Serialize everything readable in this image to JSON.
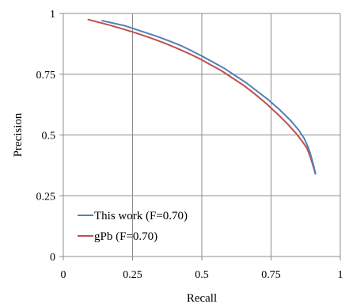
{
  "chart_data": {
    "type": "line",
    "title": "",
    "xlabel": "Recall",
    "ylabel": "Precision",
    "xlim": [
      0,
      1
    ],
    "ylim": [
      0,
      1
    ],
    "x_ticks": [
      "0",
      "0.25",
      "0.5",
      "0.75",
      "1"
    ],
    "y_ticks": [
      "0",
      "0.25",
      "0.5",
      "0.75",
      "1"
    ],
    "grid": true,
    "legend_position": "bottom-left",
    "series": [
      {
        "name": "This work (F=0.70)",
        "color": "#4f81bd",
        "x": [
          0.14,
          0.18,
          0.22,
          0.26,
          0.3,
          0.34,
          0.38,
          0.42,
          0.46,
          0.5,
          0.54,
          0.58,
          0.62,
          0.66,
          0.7,
          0.74,
          0.78,
          0.82,
          0.85,
          0.87,
          0.88,
          0.89,
          0.9,
          0.91
        ],
        "y": [
          0.97,
          0.96,
          0.95,
          0.935,
          0.92,
          0.905,
          0.888,
          0.87,
          0.848,
          0.825,
          0.8,
          0.775,
          0.745,
          0.715,
          0.68,
          0.645,
          0.605,
          0.56,
          0.52,
          0.485,
          0.46,
          0.43,
          0.39,
          0.345
        ]
      },
      {
        "name": "gPb (F=0.70)",
        "color": "#c0504d",
        "x": [
          0.09,
          0.13,
          0.17,
          0.21,
          0.25,
          0.29,
          0.33,
          0.37,
          0.41,
          0.45,
          0.49,
          0.53,
          0.57,
          0.61,
          0.65,
          0.69,
          0.73,
          0.77,
          0.81,
          0.84,
          0.86,
          0.88,
          0.89,
          0.9,
          0.91
        ],
        "y": [
          0.975,
          0.963,
          0.951,
          0.938,
          0.924,
          0.909,
          0.893,
          0.876,
          0.857,
          0.837,
          0.815,
          0.79,
          0.765,
          0.735,
          0.705,
          0.67,
          0.632,
          0.59,
          0.545,
          0.507,
          0.478,
          0.445,
          0.415,
          0.38,
          0.34
        ]
      }
    ]
  }
}
